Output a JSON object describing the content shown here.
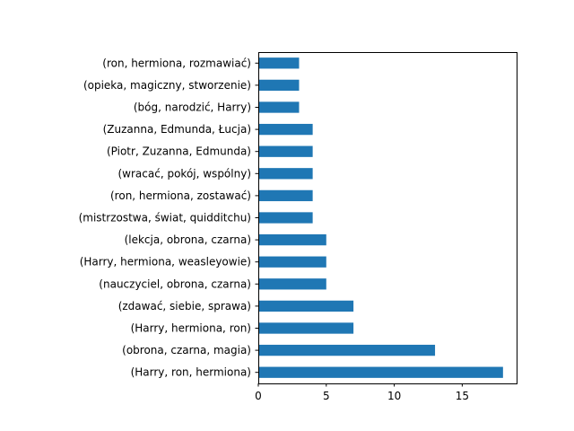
{
  "chart_data": {
    "type": "bar",
    "orientation": "horizontal",
    "categories": [
      "(Harry, ron, hermiona)",
      "(obrona, czarna, magia)",
      "(Harry, hermiona, ron)",
      "(zdawać, siebie, sprawa)",
      "(nauczyciel, obrona, czarna)",
      "(Harry, hermiona, weasleyowie)",
      "(lekcja, obrona, czarna)",
      "(mistrzostwa, świat, quidditchu)",
      "(ron, hermiona, zostawać)",
      "(wracać, pokój, wspólny)",
      "(Piotr, Zuzanna, Edmunda)",
      "(Zuzanna, Edmunda, Łucja)",
      "(bóg, narodzić, Harry)",
      "(opieka, magiczny, stworzenie)",
      "(ron, hermiona, rozmawiać)"
    ],
    "values": [
      18,
      13,
      7,
      7,
      5,
      5,
      5,
      4,
      4,
      4,
      4,
      4,
      3,
      3,
      3
    ],
    "xlim": [
      0,
      19
    ],
    "xticks": [
      0,
      5,
      10,
      15
    ],
    "title": "",
    "xlabel": "",
    "ylabel": "",
    "grid": false,
    "bar_color": "#1f77b4"
  }
}
